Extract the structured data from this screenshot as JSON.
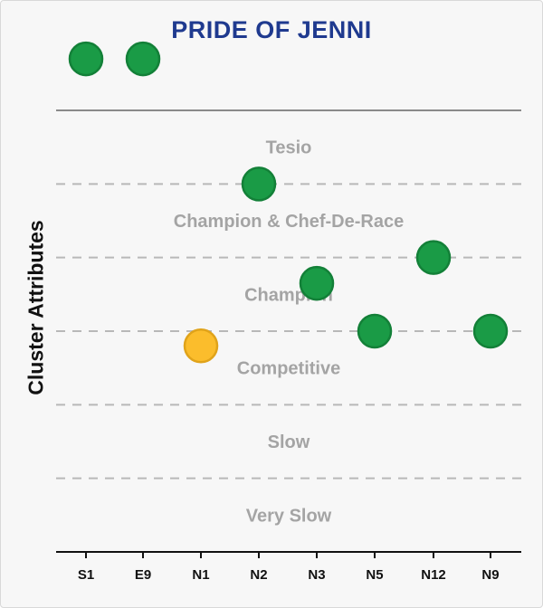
{
  "chart_data": {
    "type": "scatter",
    "title": "PRIDE OF JENNI",
    "ylabel": "Cluster Attributes",
    "categories": [
      "S1",
      "E9",
      "N1",
      "N2",
      "N3",
      "N5",
      "N12",
      "N9"
    ],
    "bands": [
      "Tesio",
      "Champion & Chef-De-Race",
      "Champion",
      "Competitive",
      "Slow",
      "Very Slow"
    ],
    "points": [
      {
        "category": "S1",
        "level": 6.7,
        "color": "green"
      },
      {
        "category": "E9",
        "level": 6.7,
        "color": "green"
      },
      {
        "category": "N2",
        "level": 5.0,
        "color": "green"
      },
      {
        "category": "N12",
        "level": 4.0,
        "color": "green"
      },
      {
        "category": "N3",
        "level": 3.65,
        "color": "green"
      },
      {
        "category": "N5",
        "level": 3.0,
        "color": "green"
      },
      {
        "category": "N9",
        "level": 3.0,
        "color": "green"
      },
      {
        "category": "N1",
        "level": 2.8,
        "color": "yellow"
      }
    ],
    "ylim": [
      0,
      6
    ],
    "grid": true,
    "colors": {
      "green": "#1a9b46",
      "green_stroke": "#138038",
      "yellow": "#fbbd2c",
      "yellow_stroke": "#e0a31a",
      "title": "#1f3a8f",
      "band_text": "#a4a4a4"
    }
  }
}
